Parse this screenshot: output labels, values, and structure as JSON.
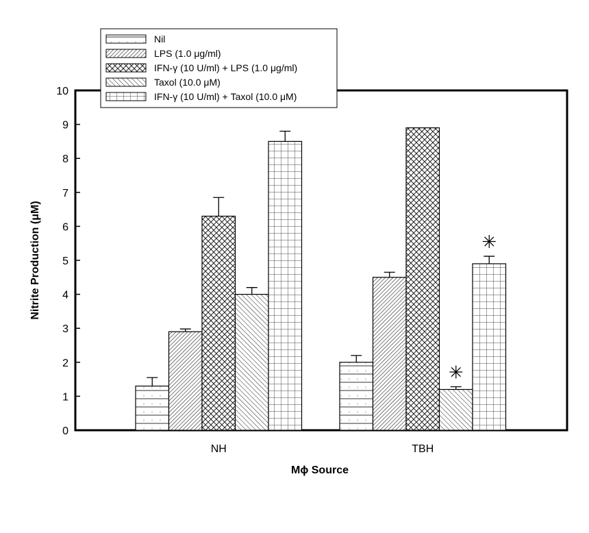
{
  "chart_data": {
    "type": "bar",
    "xlabel": "Mϕ Source",
    "ylabel": "Nitrite Production (μM)",
    "ylim": [
      0,
      10
    ],
    "yticks": [
      "0",
      "1",
      "2",
      "3",
      "4",
      "5",
      "6",
      "7",
      "8",
      "9",
      "10"
    ],
    "categories": [
      "NH",
      "TBH"
    ],
    "series": [
      {
        "name": "Nil",
        "values": [
          1.3,
          2.0
        ],
        "errors": [
          0.25,
          0.2
        ],
        "pattern": "horizontal"
      },
      {
        "name": "LPS (1.0 μg/ml)",
        "values": [
          2.9,
          4.5
        ],
        "errors": [
          0.08,
          0.15
        ],
        "pattern": "dense-diagonal"
      },
      {
        "name": "IFN-γ (10 U/ml) + LPS (1.0 μg/ml)",
        "values": [
          6.3,
          8.9
        ],
        "errors": [
          0.55,
          0.0
        ],
        "pattern": "crosshatch"
      },
      {
        "name": "Taxol (10.0 μM)",
        "values": [
          4.0,
          1.2
        ],
        "errors": [
          0.2,
          0.08
        ],
        "pattern": "diagonal"
      },
      {
        "name": "IFN-γ (10 U/ml) + Taxol (10.0 μM)",
        "values": [
          8.5,
          4.9
        ],
        "errors": [
          0.3,
          0.22
        ],
        "pattern": "grid"
      }
    ],
    "annotations": [
      {
        "category": "TBH",
        "series": 3,
        "symbol": "✳"
      },
      {
        "category": "TBH",
        "series": 4,
        "symbol": "✳"
      }
    ],
    "legend_placement": "top-left",
    "grid": false
  }
}
